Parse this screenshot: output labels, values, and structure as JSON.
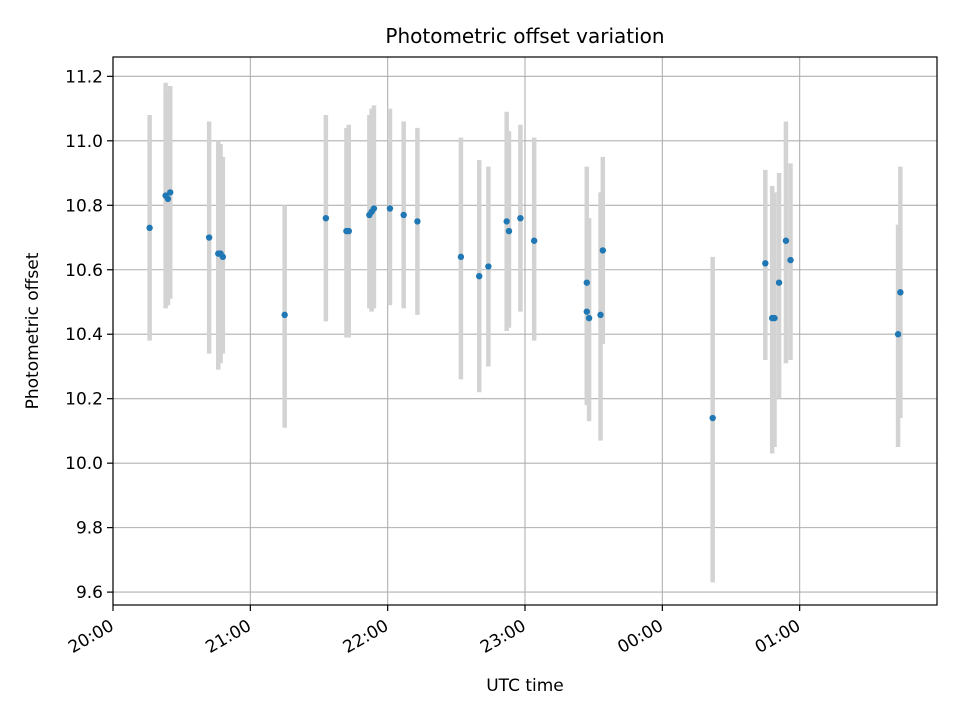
{
  "chart_data": {
    "type": "scatter",
    "title": "Photometric offset variation",
    "xlabel": "UTC time",
    "ylabel": "Photometric offset",
    "x_axis_type": "time",
    "xlim": [
      "20:00",
      "02:00"
    ],
    "ylim": [
      9.56,
      11.26
    ],
    "grid": true,
    "x_ticks": [
      "20:00",
      "21:00",
      "22:00",
      "23:00",
      "00:00",
      "01:00"
    ],
    "y_ticks": [
      "9.6",
      "9.8",
      "10.0",
      "10.2",
      "10.4",
      "10.6",
      "10.8",
      "11.0",
      "11.2"
    ],
    "colors": {
      "points": "#1f77b4",
      "errorbars": "#d3d3d3",
      "grid": "#b0b0b0"
    },
    "series": [
      {
        "points": [
          {
            "x": "20:16",
            "y": 10.73,
            "ylow": 10.38,
            "yhigh": 11.08
          },
          {
            "x": "20:23",
            "y": 10.83,
            "ylow": 10.48,
            "yhigh": 11.18
          },
          {
            "x": "20:24",
            "y": 10.82,
            "ylow": 10.49,
            "yhigh": 11.15
          },
          {
            "x": "20:25",
            "y": 10.84,
            "ylow": 10.51,
            "yhigh": 11.17
          },
          {
            "x": "20:42",
            "y": 10.7,
            "ylow": 10.34,
            "yhigh": 11.06
          },
          {
            "x": "20:46",
            "y": 10.65,
            "ylow": 10.29,
            "yhigh": 11.0
          },
          {
            "x": "20:47",
            "y": 10.65,
            "ylow": 10.31,
            "yhigh": 10.99
          },
          {
            "x": "20:48",
            "y": 10.64,
            "ylow": 10.34,
            "yhigh": 10.95
          },
          {
            "x": "21:15",
            "y": 10.46,
            "ylow": 10.11,
            "yhigh": 10.8
          },
          {
            "x": "21:33",
            "y": 10.76,
            "ylow": 10.44,
            "yhigh": 11.08
          },
          {
            "x": "21:42",
            "y": 10.72,
            "ylow": 10.39,
            "yhigh": 11.04
          },
          {
            "x": "21:43",
            "y": 10.72,
            "ylow": 10.39,
            "yhigh": 11.05
          },
          {
            "x": "21:52",
            "y": 10.77,
            "ylow": 10.48,
            "yhigh": 11.08
          },
          {
            "x": "21:53",
            "y": 10.78,
            "ylow": 10.47,
            "yhigh": 11.1
          },
          {
            "x": "21:54",
            "y": 10.79,
            "ylow": 10.48,
            "yhigh": 11.11
          },
          {
            "x": "22:01",
            "y": 10.79,
            "ylow": 10.49,
            "yhigh": 11.1
          },
          {
            "x": "22:07",
            "y": 10.77,
            "ylow": 10.48,
            "yhigh": 11.06
          },
          {
            "x": "22:13",
            "y": 10.75,
            "ylow": 10.46,
            "yhigh": 11.04
          },
          {
            "x": "22:32",
            "y": 10.64,
            "ylow": 10.26,
            "yhigh": 11.01
          },
          {
            "x": "22:40",
            "y": 10.58,
            "ylow": 10.22,
            "yhigh": 10.94
          },
          {
            "x": "22:44",
            "y": 10.61,
            "ylow": 10.3,
            "yhigh": 10.92
          },
          {
            "x": "22:52",
            "y": 10.75,
            "ylow": 10.41,
            "yhigh": 11.09
          },
          {
            "x": "22:53",
            "y": 10.72,
            "ylow": 10.42,
            "yhigh": 11.03
          },
          {
            "x": "22:58",
            "y": 10.76,
            "ylow": 10.47,
            "yhigh": 11.05
          },
          {
            "x": "23:04",
            "y": 10.69,
            "ylow": 10.38,
            "yhigh": 11.01
          },
          {
            "x": "23:27",
            "y": 10.56,
            "ylow": 10.19,
            "yhigh": 10.92
          },
          {
            "x": "23:27",
            "y": 10.47,
            "ylow": 10.18,
            "yhigh": 10.76
          },
          {
            "x": "23:28",
            "y": 10.45,
            "ylow": 10.13,
            "yhigh": 10.76
          },
          {
            "x": "23:33",
            "y": 10.46,
            "ylow": 10.07,
            "yhigh": 10.84
          },
          {
            "x": "23:34",
            "y": 10.66,
            "ylow": 10.37,
            "yhigh": 10.95
          },
          {
            "x": "00:22",
            "y": 10.14,
            "ylow": 9.63,
            "yhigh": 10.64
          },
          {
            "x": "00:45",
            "y": 10.62,
            "ylow": 10.32,
            "yhigh": 10.91
          },
          {
            "x": "00:48",
            "y": 10.45,
            "ylow": 10.03,
            "yhigh": 10.86
          },
          {
            "x": "00:49",
            "y": 10.45,
            "ylow": 10.05,
            "yhigh": 10.84
          },
          {
            "x": "00:51",
            "y": 10.56,
            "ylow": 10.2,
            "yhigh": 10.9
          },
          {
            "x": "00:54",
            "y": 10.69,
            "ylow": 10.31,
            "yhigh": 11.06
          },
          {
            "x": "00:56",
            "y": 10.63,
            "ylow": 10.32,
            "yhigh": 10.93
          },
          {
            "x": "01:43",
            "y": 10.4,
            "ylow": 10.05,
            "yhigh": 10.74
          },
          {
            "x": "01:44",
            "y": 10.53,
            "ylow": 10.14,
            "yhigh": 10.92
          }
        ]
      }
    ]
  }
}
